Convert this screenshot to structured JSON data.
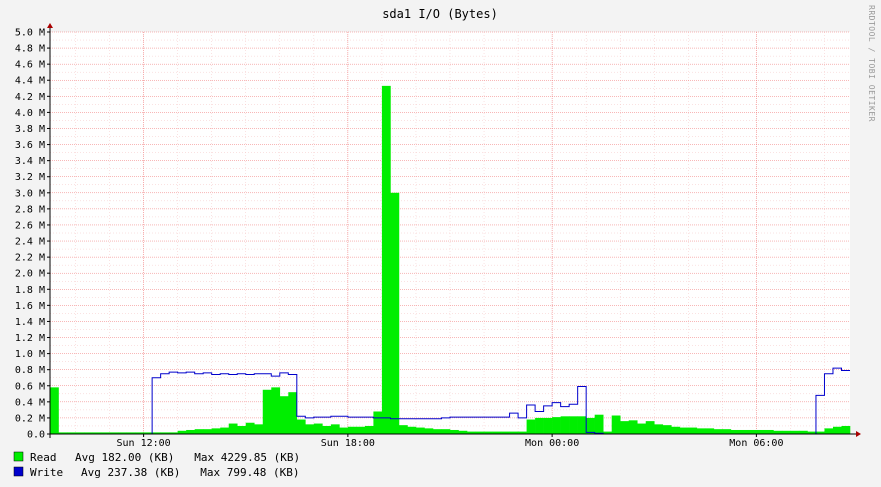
{
  "colors": {
    "background": "#f3f3f3",
    "canvas": "#ffffff",
    "read_fill": "#00ee00",
    "write_line": "#0000cc",
    "grid_major": "#f07070",
    "grid_minor": "#f5c6c6",
    "axis": "#000000",
    "arrow": "#aa0000"
  },
  "watermark": "RRDTOOL / TOBI OETIKER",
  "chart_data": {
    "type": "area",
    "title": "sda1 I/O (Bytes)",
    "xlabel": "",
    "ylabel": "",
    "x_start": "Sun 09:15",
    "x_step_minutes": 15,
    "x_tick_labels": [
      "Sun 12:00",
      "Sun 18:00",
      "Mon 00:00",
      "Mon 06:00"
    ],
    "y_tick_labels": [
      "0.0",
      "0.2 M",
      "0.4 M",
      "0.6 M",
      "0.8 M",
      "1.0 M",
      "1.2 M",
      "1.4 M",
      "1.6 M",
      "1.8 M",
      "2.0 M",
      "2.2 M",
      "2.4 M",
      "2.6 M",
      "2.8 M",
      "3.0 M",
      "3.2 M",
      "3.4 M",
      "3.6 M",
      "3.8 M",
      "4.0 M",
      "4.2 M",
      "4.4 M",
      "4.6 M",
      "4.8 M",
      "5.0 M"
    ],
    "ylim": [
      0,
      5000000
    ],
    "grid": true,
    "legend_position": "bottom-left",
    "series": [
      {
        "name": "Read",
        "style": "area",
        "color": "#00ee00",
        "legend_text": "Avg 182.00 (KB)   Max 4229.85 (KB)",
        "values": [
          580000,
          20000,
          20000,
          20000,
          20000,
          20000,
          20000,
          20000,
          20000,
          20000,
          20000,
          20000,
          20000,
          20000,
          20000,
          40000,
          50000,
          60000,
          60000,
          70000,
          80000,
          130000,
          100000,
          140000,
          120000,
          550000,
          580000,
          470000,
          520000,
          180000,
          120000,
          130000,
          100000,
          120000,
          80000,
          90000,
          90000,
          100000,
          280000,
          4330000,
          3000000,
          110000,
          90000,
          80000,
          70000,
          60000,
          60000,
          50000,
          40000,
          30000,
          30000,
          30000,
          30000,
          30000,
          30000,
          30000,
          180000,
          200000,
          200000,
          210000,
          220000,
          220000,
          220000,
          200000,
          240000,
          30000,
          230000,
          160000,
          170000,
          130000,
          160000,
          120000,
          110000,
          90000,
          80000,
          80000,
          70000,
          70000,
          60000,
          60000,
          50000,
          50000,
          50000,
          50000,
          50000,
          40000,
          40000,
          40000,
          40000,
          30000,
          30000,
          70000,
          90000,
          100000
        ]
      },
      {
        "name": "Write",
        "style": "line",
        "color": "#0000cc",
        "legend_text": "Avg 237.38 (KB)   Max 799.48 (KB)",
        "values": [
          0,
          0,
          0,
          0,
          0,
          0,
          0,
          0,
          0,
          0,
          0,
          0,
          700000,
          750000,
          770000,
          760000,
          770000,
          750000,
          760000,
          740000,
          750000,
          740000,
          750000,
          740000,
          750000,
          750000,
          720000,
          760000,
          740000,
          220000,
          200000,
          210000,
          210000,
          220000,
          220000,
          210000,
          210000,
          210000,
          200000,
          200000,
          190000,
          190000,
          190000,
          190000,
          190000,
          190000,
          200000,
          210000,
          210000,
          210000,
          210000,
          210000,
          210000,
          210000,
          260000,
          200000,
          360000,
          280000,
          350000,
          390000,
          340000,
          370000,
          590000,
          20000,
          10000,
          0,
          0,
          0,
          0,
          0,
          0,
          0,
          0,
          0,
          0,
          0,
          0,
          0,
          0,
          0,
          0,
          0,
          0,
          0,
          0,
          0,
          0,
          0,
          0,
          0,
          480000,
          750000,
          820000,
          790000
        ]
      }
    ]
  }
}
